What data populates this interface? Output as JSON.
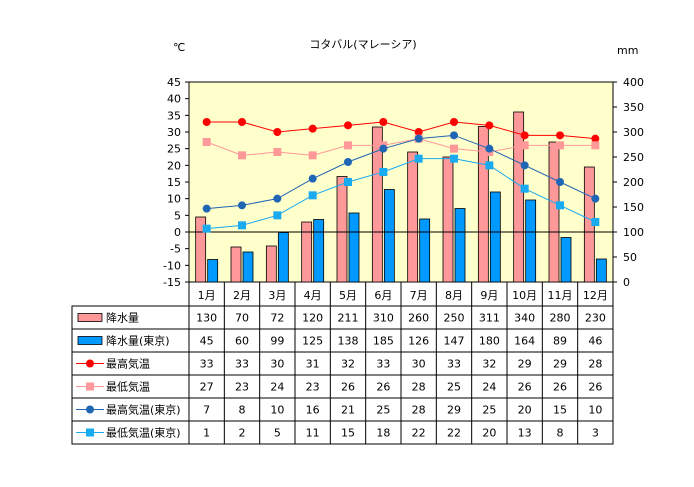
{
  "chart_data": {
    "type": "bar",
    "title": "コタバル(マレーシア)",
    "ylabel_left": "℃",
    "ylabel_right": "mm",
    "ylim_left": [
      -15,
      45
    ],
    "ylim_right": [
      0,
      400
    ],
    "yticks_left": [
      45,
      40,
      35,
      30,
      25,
      20,
      15,
      10,
      5,
      0,
      -5,
      -10,
      -15
    ],
    "yticks_right": [
      400,
      350,
      300,
      250,
      200,
      150,
      100,
      50,
      0
    ],
    "categories": [
      "1月",
      "2月",
      "3月",
      "4月",
      "5月",
      "6月",
      "7月",
      "8月",
      "9月",
      "10月",
      "11月",
      "12月"
    ],
    "plot_background": "#ffffcc",
    "series": [
      {
        "name": "降水量",
        "kind": "bar",
        "axis": "right",
        "color": "#ff9999",
        "values": [
          130,
          70,
          72,
          120,
          211,
          310,
          260,
          250,
          311,
          340,
          280,
          230
        ]
      },
      {
        "name": "降水量(東京)",
        "kind": "bar",
        "axis": "right",
        "color": "#0099ff",
        "values": [
          45,
          60,
          99,
          125,
          138,
          185,
          126,
          147,
          180,
          164,
          89,
          46
        ]
      },
      {
        "name": "最高気温",
        "kind": "line",
        "axis": "left",
        "color": "#ff0000",
        "marker": "circle",
        "values": [
          33,
          33,
          30,
          31,
          32,
          33,
          30,
          33,
          32,
          29,
          29,
          28
        ]
      },
      {
        "name": "最低気温",
        "kind": "line",
        "axis": "left",
        "color": "#ff9999",
        "marker": "square",
        "values": [
          27,
          23,
          24,
          23,
          26,
          26,
          28,
          25,
          24,
          26,
          26,
          26
        ]
      },
      {
        "name": "最高気温(東京)",
        "kind": "line",
        "axis": "left",
        "color": "#1f66b5",
        "marker": "circle",
        "values": [
          7,
          8,
          10,
          16,
          21,
          25,
          28,
          29,
          25,
          20,
          15,
          10
        ]
      },
      {
        "name": "最低気温(東京)",
        "kind": "line",
        "axis": "left",
        "color": "#1aaaf0",
        "marker": "square",
        "values": [
          1,
          2,
          5,
          11,
          15,
          18,
          22,
          22,
          20,
          13,
          8,
          3
        ]
      }
    ]
  }
}
